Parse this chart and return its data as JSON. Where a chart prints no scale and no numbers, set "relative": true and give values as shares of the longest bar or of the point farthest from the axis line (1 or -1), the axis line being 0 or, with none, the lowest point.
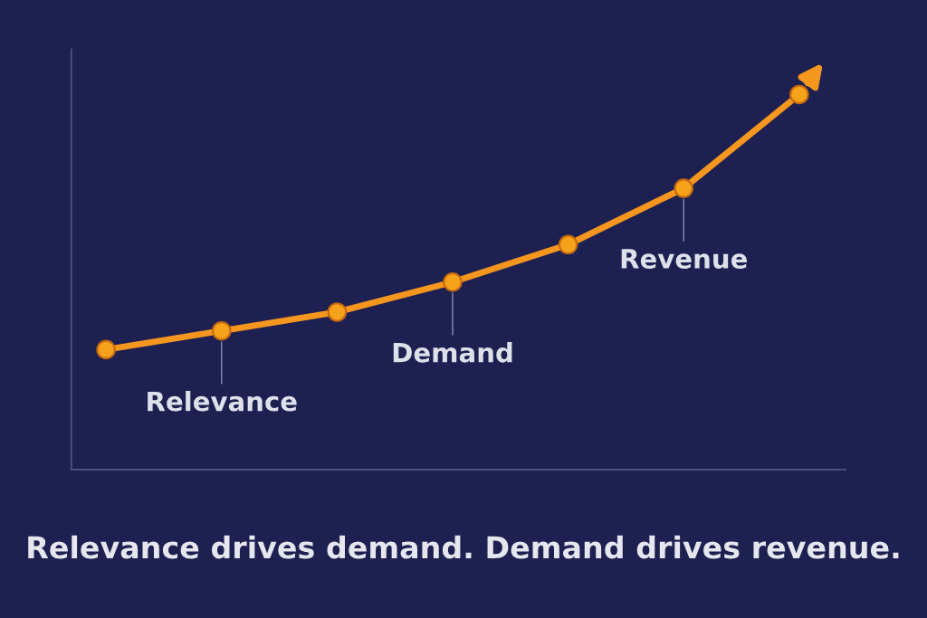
{
  "chart_data": {
    "type": "line",
    "relative": true,
    "categories": [
      null,
      null,
      null,
      null,
      null,
      null,
      null
    ],
    "series": [
      {
        "color": "#f5961e",
        "values": [
          0.32,
          0.37,
          0.42,
          0.5,
          0.6,
          0.75,
          1.0
        ]
      }
    ],
    "marker": "circle",
    "annotations": [
      {
        "text": "Relevance",
        "y": 0.37
      },
      {
        "text": "Demand",
        "y": 0.5
      },
      {
        "text": "Revenue",
        "y": 0.75
      },
      "Relevance drives demand. Demand drives revenue."
    ]
  }
}
